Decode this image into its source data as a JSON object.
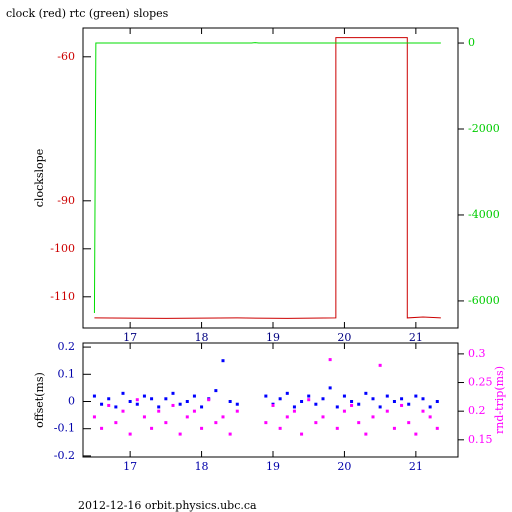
{
  "chart_data": [
    {
      "type": "line",
      "title": "clock (red) rtc (green) slopes",
      "ylabel": "clockslope",
      "xlim": [
        16.34,
        21.59
      ],
      "xticks": [
        17,
        18,
        19,
        20,
        21
      ],
      "ylim": [
        -116.5,
        -54
      ],
      "yticks": [
        -60,
        -90,
        -100,
        -110
      ],
      "y2lim": [
        -6630,
        350
      ],
      "y2ticks": [
        0,
        -2000,
        -4000,
        -6000
      ],
      "series": [
        {
          "name": "clock",
          "color": "#cc0000",
          "x": [
            16.5,
            17.5,
            18.5,
            19.2,
            19.88,
            19.88,
            20.3,
            20.88,
            20.88,
            21.1,
            21.35
          ],
          "values": [
            -114.4,
            -114.5,
            -114.4,
            -114.5,
            -114.4,
            -56.0,
            -56.0,
            -56.0,
            -114.4,
            -114.2,
            -114.4
          ]
        },
        {
          "name": "rtc",
          "color": "#00dd00",
          "axis": "y2",
          "x": [
            16.5,
            16.52,
            18.7,
            18.75,
            18.8,
            21.35
          ],
          "values": [
            -6280,
            0,
            0,
            10,
            0,
            0
          ]
        }
      ]
    },
    {
      "type": "scatter",
      "ylabel": "offset(ms)",
      "y2label": "rnd-trip(ms)",
      "xlim": [
        16.34,
        21.59
      ],
      "xticks": [
        17,
        18,
        19,
        20,
        21
      ],
      "ylim": [
        -0.204,
        0.215
      ],
      "yticks": [
        0.2,
        0.1,
        0,
        -0.1,
        -0.2
      ],
      "y2lim": [
        0.12,
        0.319
      ],
      "y2ticks": [
        0.3,
        0.25,
        0.2,
        0.15
      ],
      "footer": "2012-12-16 orbit.physics.ubc.ca",
      "series": [
        {
          "name": "offset",
          "color": "#0000ff",
          "x": [
            16.5,
            16.6,
            16.7,
            16.8,
            16.9,
            17.0,
            17.1,
            17.2,
            17.3,
            17.4,
            17.5,
            17.6,
            17.7,
            17.8,
            17.9,
            18.0,
            18.1,
            18.2,
            18.3,
            18.4,
            18.5,
            18.9,
            19.0,
            19.1,
            19.2,
            19.3,
            19.4,
            19.5,
            19.6,
            19.7,
            19.8,
            19.9,
            20.0,
            20.1,
            20.2,
            20.3,
            20.4,
            20.5,
            20.6,
            20.7,
            20.8,
            20.9,
            21.0,
            21.1,
            21.2,
            21.3
          ],
          "values": [
            0.02,
            -0.01,
            0.01,
            -0.02,
            0.03,
            0.0,
            -0.01,
            0.02,
            0.01,
            -0.02,
            0.01,
            0.03,
            -0.01,
            0.0,
            0.02,
            -0.02,
            0.01,
            0.04,
            0.15,
            0.0,
            -0.01,
            0.02,
            -0.01,
            0.01,
            0.03,
            -0.02,
            0.0,
            0.02,
            -0.01,
            0.01,
            0.05,
            -0.02,
            0.02,
            0.0,
            -0.01,
            0.03,
            0.01,
            -0.02,
            0.02,
            0.0,
            0.01,
            -0.01,
            0.02,
            0.01,
            -0.02,
            0.0
          ]
        },
        {
          "name": "rnd-trip",
          "color": "#ff00ff",
          "axis": "y2",
          "x": [
            16.5,
            16.6,
            16.7,
            16.8,
            16.9,
            17.0,
            17.1,
            17.2,
            17.3,
            17.4,
            17.5,
            17.6,
            17.7,
            17.8,
            17.9,
            18.0,
            18.1,
            18.2,
            18.3,
            18.4,
            18.5,
            18.9,
            19.0,
            19.1,
            19.2,
            19.3,
            19.4,
            19.5,
            19.6,
            19.7,
            19.8,
            19.9,
            20.0,
            20.1,
            20.2,
            20.3,
            20.4,
            20.5,
            20.6,
            20.7,
            20.8,
            20.9,
            21.0,
            21.1,
            21.2,
            21.3
          ],
          "values": [
            0.19,
            0.17,
            0.21,
            0.18,
            0.2,
            0.16,
            0.22,
            0.19,
            0.17,
            0.2,
            0.18,
            0.21,
            0.16,
            0.19,
            0.2,
            0.17,
            0.22,
            0.18,
            0.19,
            0.16,
            0.2,
            0.18,
            0.21,
            0.17,
            0.19,
            0.2,
            0.16,
            0.22,
            0.18,
            0.19,
            0.29,
            0.17,
            0.2,
            0.21,
            0.18,
            0.16,
            0.19,
            0.28,
            0.2,
            0.17,
            0.21,
            0.18,
            0.16,
            0.2,
            0.19,
            0.17
          ]
        }
      ]
    }
  ]
}
